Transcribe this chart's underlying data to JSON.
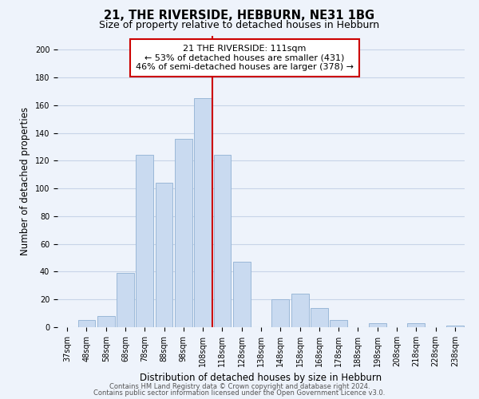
{
  "title": "21, THE RIVERSIDE, HEBBURN, NE31 1BG",
  "subtitle": "Size of property relative to detached houses in Hebburn",
  "xlabel": "Distribution of detached houses by size in Hebburn",
  "ylabel": "Number of detached properties",
  "bar_labels": [
    "37sqm",
    "48sqm",
    "58sqm",
    "68sqm",
    "78sqm",
    "88sqm",
    "98sqm",
    "108sqm",
    "118sqm",
    "128sqm",
    "138sqm",
    "148sqm",
    "158sqm",
    "168sqm",
    "178sqm",
    "188sqm",
    "198sqm",
    "208sqm",
    "218sqm",
    "228sqm",
    "238sqm"
  ],
  "bar_values": [
    0,
    5,
    8,
    39,
    124,
    104,
    136,
    165,
    124,
    47,
    0,
    20,
    24,
    14,
    5,
    0,
    3,
    0,
    3,
    0,
    1
  ],
  "bar_color": "#c9daf0",
  "bar_edge_color": "#9ab8d8",
  "vline_color": "#cc0000",
  "annotation_title": "21 THE RIVERSIDE: 111sqm",
  "annotation_line1": "← 53% of detached houses are smaller (431)",
  "annotation_line2": "46% of semi-detached houses are larger (378) →",
  "annotation_box_color": "#ffffff",
  "annotation_box_edge": "#cc0000",
  "ylim": [
    0,
    210
  ],
  "yticks": [
    0,
    20,
    40,
    60,
    80,
    100,
    120,
    140,
    160,
    180,
    200
  ],
  "footnote1": "Contains HM Land Registry data © Crown copyright and database right 2024.",
  "footnote2": "Contains public sector information licensed under the Open Government Licence v3.0.",
  "bg_color": "#eef3fb",
  "grid_color": "#c8d4e8",
  "title_fontsize": 10.5,
  "subtitle_fontsize": 9,
  "axis_label_fontsize": 8.5,
  "tick_fontsize": 7,
  "annotation_fontsize": 8,
  "footnote_fontsize": 6
}
